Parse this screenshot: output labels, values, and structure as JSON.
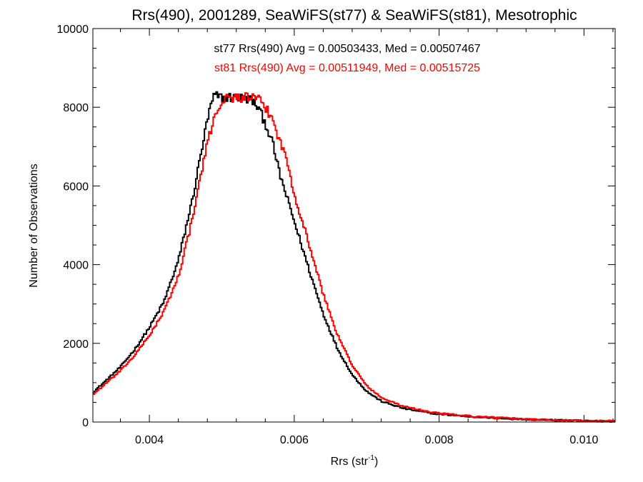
{
  "chart_data": {
    "type": "line",
    "step": true,
    "title": "Rrs(490), 2001289, SeaWiFS(st77) & SeaWiFS(st81), Mesotrophic",
    "xlabel": "Rrs (str",
    "xlabel_sup": "-1",
    "xlabel_close": ")",
    "ylabel": "Number of Observations",
    "xlim": [
      0.00322,
      0.01043
    ],
    "ylim": [
      0,
      10000
    ],
    "xticks": [
      0.004,
      0.006,
      0.008,
      0.01
    ],
    "xtick_labels": [
      "0.004",
      "0.006",
      "0.008",
      "0.010"
    ],
    "yticks": [
      0,
      2000,
      4000,
      6000,
      8000,
      10000
    ],
    "ytick_labels": [
      "0",
      "2000",
      "4000",
      "6000",
      "8000",
      "10000"
    ],
    "grid": false,
    "series": [
      {
        "name": "st77",
        "color": "#000000",
        "annotation": "st77 Rrs(490) Avg = 0.00503433, Med = 0.00507467",
        "x": [
          0.00322,
          0.0034,
          0.0036,
          0.0038,
          0.004,
          0.0042,
          0.0044,
          0.0046,
          0.0047,
          0.0048,
          0.00485,
          0.0049,
          0.005,
          0.0052,
          0.0054,
          0.0055,
          0.0056,
          0.0057,
          0.0058,
          0.006,
          0.0062,
          0.0064,
          0.0066,
          0.0068,
          0.007,
          0.0072,
          0.0075,
          0.0078,
          0.008,
          0.0085,
          0.009,
          0.0095,
          0.01,
          0.01043
        ],
        "y": [
          750,
          1050,
          1400,
          1850,
          2400,
          3050,
          4100,
          5700,
          6700,
          7650,
          8050,
          8300,
          8250,
          8250,
          8200,
          8000,
          7600,
          7100,
          6300,
          5100,
          3900,
          2750,
          1850,
          1200,
          780,
          530,
          350,
          250,
          200,
          130,
          80,
          50,
          30,
          20
        ]
      },
      {
        "name": "st81",
        "color": "#ff0000",
        "annotation": "st81 Rrs(490) Avg = 0.00511949, Med = 0.00515725",
        "x": [
          0.00322,
          0.0034,
          0.0036,
          0.0038,
          0.004,
          0.0042,
          0.0044,
          0.0046,
          0.0047,
          0.0048,
          0.0049,
          0.005,
          0.0051,
          0.0052,
          0.0054,
          0.0055,
          0.0056,
          0.0057,
          0.0058,
          0.0059,
          0.006,
          0.0062,
          0.0064,
          0.0066,
          0.0068,
          0.007,
          0.0072,
          0.0075,
          0.0078,
          0.008,
          0.0085,
          0.009,
          0.0095,
          0.01,
          0.01043
        ],
        "y": [
          700,
          980,
          1300,
          1700,
          2200,
          2800,
          3700,
          5200,
          6200,
          7050,
          7800,
          8150,
          8250,
          8250,
          8250,
          8200,
          8000,
          7700,
          7150,
          6650,
          5800,
          4550,
          3250,
          2200,
          1450,
          920,
          620,
          400,
          280,
          220,
          140,
          90,
          55,
          35,
          25
        ]
      }
    ]
  }
}
